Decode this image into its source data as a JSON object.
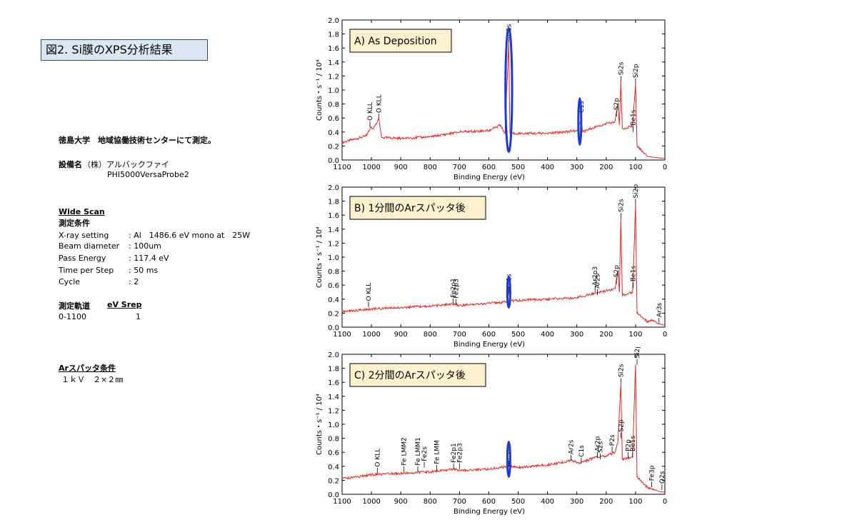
{
  "title": "図2. Si膜のXPS分析結果",
  "info": {
    "measured_at": "徳島大学　地域協働技術センターにて測定。",
    "equipment_label": "設備名",
    "equipment_maker": "（株）アルバックファイ",
    "equipment_model": "PHI5000VersaProbe2",
    "wide_scan": "Wide Scan",
    "conditions_label": "測定条件",
    "conditions": [
      {
        "key": "X-ray setting",
        "value": ": Al　1486.6 eV  mono at　25W"
      },
      {
        "key": "Beam diameter",
        "value": ": 100um"
      },
      {
        "key": "Pass Energy",
        "value": ": 117.4 eV"
      },
      {
        "key": "Time per Step",
        "value": ": 50 ms"
      },
      {
        "key": "Cycle",
        "value": ": 2"
      }
    ],
    "orbit_label": "測定軌道",
    "step_label": "eV Srep",
    "orbit_value": "0-1100",
    "step_value": "1",
    "sputter_label": "Arスパッタ条件",
    "sputter_value": "１ｋＶ　２×２㎜"
  },
  "chart_data": [
    {
      "type": "line",
      "panel_label": "A) As Deposition",
      "xlabel": "Binding Energy (eV)",
      "ylabel": "Counts・s⁻¹ / 10⁴",
      "xlim": [
        1100,
        0
      ],
      "ylim": [
        0,
        2.0
      ],
      "xticks": [
        "1100",
        "1000",
        "900",
        "800",
        "700",
        "600",
        "500",
        "400",
        "300",
        "200",
        "100",
        "0"
      ],
      "yticks": [
        "0.0",
        "0.2",
        "0.4",
        "0.6",
        "0.8",
        "1.0",
        "1.2",
        "1.4",
        "1.6",
        "1.8",
        "2.0"
      ],
      "series": [
        {
          "values": [
            [
              1100,
              0.25
            ],
            [
              1020,
              0.34
            ],
            [
              1000,
              0.47
            ],
            [
              995,
              0.44
            ],
            [
              975,
              0.58
            ],
            [
              965,
              0.32
            ],
            [
              900,
              0.31
            ],
            [
              800,
              0.33
            ],
            [
              700,
              0.4
            ],
            [
              600,
              0.42
            ],
            [
              560,
              0.5
            ],
            [
              545,
              0.38
            ],
            [
              532,
              1.68
            ],
            [
              528,
              0.38
            ],
            [
              400,
              0.38
            ],
            [
              300,
              0.42
            ],
            [
              285,
              0.58
            ],
            [
              280,
              0.4
            ],
            [
              230,
              0.48
            ],
            [
              200,
              0.52
            ],
            [
              170,
              0.55
            ],
            [
              160,
              0.8
            ],
            [
              155,
              0.5
            ],
            [
              150,
              1.12
            ],
            [
              145,
              0.45
            ],
            [
              110,
              0.48
            ],
            [
              100,
              1.08
            ],
            [
              95,
              0.2
            ],
            [
              60,
              0.05
            ],
            [
              0,
              0.02
            ]
          ]
        }
      ],
      "annotations": [
        "O KLL",
        "O KLL",
        "C1s",
        "C1s",
        "S2p",
        "Si2s",
        "Si2p",
        "Be1s"
      ]
    },
    {
      "type": "line",
      "panel_label": "B) 1分間のArスパッタ後",
      "xlabel": "Binding Energy (eV)",
      "ylabel": "Counts・s⁻¹ / 10⁴",
      "xlim": [
        1100,
        0
      ],
      "ylim": [
        0,
        2.0
      ],
      "xticks": [
        "1100",
        "1000",
        "900",
        "800",
        "700",
        "600",
        "500",
        "400",
        "300",
        "200",
        "100",
        "0"
      ],
      "yticks": [
        "0.0",
        "0.2",
        "0.4",
        "0.6",
        "0.8",
        "1.0",
        "1.2",
        "1.4",
        "1.6",
        "1.8",
        "2.0"
      ],
      "series": [
        {
          "values": [
            [
              1100,
              0.22
            ],
            [
              1000,
              0.26
            ],
            [
              900,
              0.28
            ],
            [
              800,
              0.3
            ],
            [
              720,
              0.33
            ],
            [
              700,
              0.31
            ],
            [
              600,
              0.34
            ],
            [
              540,
              0.36
            ],
            [
              532,
              0.5
            ],
            [
              525,
              0.38
            ],
            [
              400,
              0.4
            ],
            [
              300,
              0.42
            ],
            [
              240,
              0.48
            ],
            [
              200,
              0.52
            ],
            [
              170,
              0.55
            ],
            [
              160,
              0.8
            ],
            [
              155,
              0.5
            ],
            [
              150,
              1.55
            ],
            [
              145,
              0.45
            ],
            [
              110,
              0.5
            ],
            [
              100,
              1.75
            ],
            [
              95,
              0.2
            ],
            [
              60,
              0.08
            ],
            [
              40,
              0.1
            ],
            [
              25,
              0.05
            ],
            [
              0,
              0.03
            ]
          ]
        }
      ],
      "annotations": [
        "O KLL",
        "Fe2p1",
        "Fe2p3",
        "C1s",
        "Ar2p3",
        "Ar2s",
        "S2p",
        "Si2s",
        "Si2p",
        "Be1s",
        "Ar3s"
      ]
    },
    {
      "type": "line",
      "panel_label": "C) 2分間のArスパッタ後",
      "xlabel": "Binding Energy (eV)",
      "ylabel": "Counts・s⁻¹ / 10⁴",
      "xlim": [
        1100,
        0
      ],
      "ylim": [
        0,
        2.0
      ],
      "xticks": [
        "1100",
        "1000",
        "900",
        "800",
        "700",
        "600",
        "500",
        "400",
        "300",
        "200",
        "100",
        "0"
      ],
      "yticks": [
        "0.0",
        "0.2",
        "0.4",
        "0.6",
        "0.8",
        "1.0",
        "1.2",
        "1.4",
        "1.6",
        "1.8",
        "2.0"
      ],
      "series": [
        {
          "values": [
            [
              1100,
              0.22
            ],
            [
              1000,
              0.28
            ],
            [
              900,
              0.3
            ],
            [
              800,
              0.32
            ],
            [
              720,
              0.36
            ],
            [
              700,
              0.34
            ],
            [
              600,
              0.36
            ],
            [
              532,
              0.4
            ],
            [
              500,
              0.38
            ],
            [
              400,
              0.42
            ],
            [
              320,
              0.48
            ],
            [
              290,
              0.45
            ],
            [
              240,
              0.52
            ],
            [
              200,
              0.55
            ],
            [
              170,
              0.6
            ],
            [
              160,
              0.75
            ],
            [
              150,
              1.58
            ],
            [
              145,
              0.5
            ],
            [
              120,
              0.52
            ],
            [
              110,
              0.55
            ],
            [
              100,
              1.85
            ],
            [
              95,
              0.25
            ],
            [
              60,
              0.1
            ],
            [
              40,
              0.08
            ],
            [
              20,
              0.04
            ],
            [
              0,
              0.03
            ]
          ]
        }
      ],
      "annotations": [
        "O KLL",
        "Fe LMM2",
        "Fe LMM1",
        "Fe2s",
        "Fe LMM",
        "Fe2p1",
        "Fe2p3",
        "C1s",
        "Ar2s",
        "C1s",
        "Ar2p",
        "S2s",
        "P2s",
        "S2p",
        "Si2s",
        "P2p",
        "Be1s",
        "Si2p",
        "Fe3p",
        "O2s"
      ]
    }
  ],
  "annot_positions": [
    [
      [
        1005,
        0.47
      ],
      [
        975,
        0.58
      ],
      [
        532,
        1.68
      ],
      [
        285,
        0.58
      ],
      [
        165,
        0.62
      ],
      [
        150,
        1.12
      ],
      [
        100,
        1.08
      ],
      [
        108,
        0.4
      ]
    ],
    [
      [
        1010,
        0.28
      ],
      [
        722,
        0.33
      ],
      [
        712,
        0.32
      ],
      [
        532,
        0.5
      ],
      [
        238,
        0.5
      ],
      [
        230,
        0.46
      ],
      [
        165,
        0.62
      ],
      [
        150,
        1.55
      ],
      [
        100,
        1.75
      ],
      [
        108,
        0.56
      ],
      [
        20,
        0.05
      ]
    ],
    [
      [
        980,
        0.3
      ],
      [
        890,
        0.32
      ],
      [
        842,
        0.32
      ],
      [
        820,
        0.38
      ],
      [
        778,
        0.34
      ],
      [
        720,
        0.36
      ],
      [
        700,
        0.36
      ],
      [
        532,
        0.4
      ],
      [
        320,
        0.48
      ],
      [
        285,
        0.44
      ],
      [
        230,
        0.52
      ],
      [
        220,
        0.5
      ],
      [
        180,
        0.6
      ],
      [
        150,
        0.8
      ],
      [
        150,
        1.58
      ],
      [
        125,
        0.52
      ],
      [
        110,
        0.52
      ],
      [
        95,
        1.85
      ],
      [
        45,
        0.1
      ],
      [
        10,
        0.06
      ]
    ]
  ],
  "circles": [
    [
      [
        532,
        1.0,
        0.42,
        0.88
      ],
      [
        290,
        0.55,
        0.18,
        0.33
      ]
    ],
    [
      [
        532,
        0.5,
        0.18,
        0.22
      ]
    ],
    [
      [
        532,
        0.5,
        0.18,
        0.25
      ]
    ]
  ],
  "colors": {
    "line": "#e8231f",
    "circle": "#1c3bd6",
    "label_bg": "#fdf2d0",
    "title_bg": "#dce6f2"
  }
}
